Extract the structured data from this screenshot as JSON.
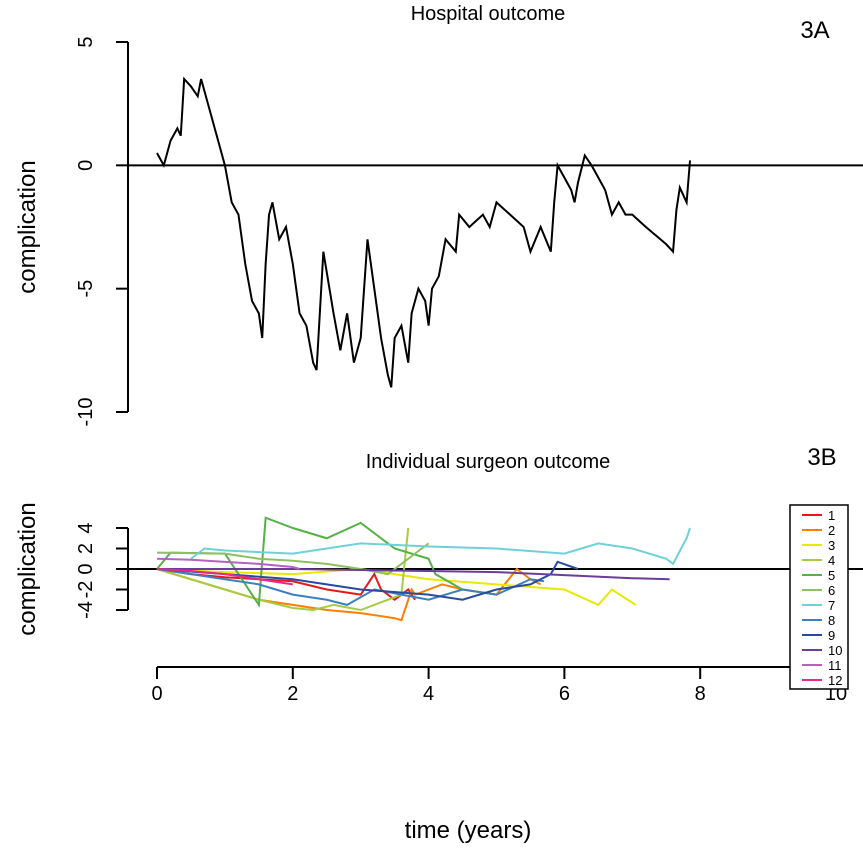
{
  "chart_data": [
    {
      "type": "line",
      "title": "Hospital outcome",
      "panel_label": "3A",
      "y_label": "complication",
      "xlim": [
        0,
        10
      ],
      "ylim": [
        -10,
        5
      ],
      "yticks": [
        5,
        0,
        -5,
        -10
      ],
      "hline": 0,
      "series": [
        {
          "name": "hospital",
          "color": "#000000",
          "x": [
            0,
            0.1,
            0.2,
            0.3,
            0.35,
            0.4,
            0.5,
            0.6,
            0.65,
            0.7,
            0.8,
            0.9,
            1.0,
            1.1,
            1.2,
            1.3,
            1.4,
            1.5,
            1.55,
            1.6,
            1.65,
            1.7,
            1.8,
            1.9,
            2.0,
            2.1,
            2.2,
            2.3,
            2.35,
            2.45,
            2.6,
            2.7,
            2.8,
            2.9,
            3.0,
            3.1,
            3.2,
            3.3,
            3.4,
            3.45,
            3.5,
            3.6,
            3.7,
            3.75,
            3.85,
            3.95,
            4.0,
            4.05,
            4.15,
            4.25,
            4.4,
            4.45,
            4.6,
            4.8,
            4.9,
            5.0,
            5.2,
            5.4,
            5.5,
            5.65,
            5.8,
            5.85,
            5.9,
            6.0,
            6.1,
            6.15,
            6.2,
            6.3,
            6.4,
            6.5,
            6.6,
            6.7,
            6.8,
            6.9,
            7.0,
            7.2,
            7.5,
            7.6,
            7.65,
            7.7,
            7.8,
            7.85
          ],
          "values": [
            0.5,
            0,
            1,
            1.5,
            1.2,
            3.5,
            3.2,
            2.8,
            3.5,
            3,
            2,
            1,
            0,
            -1.5,
            -2,
            -4,
            -5.5,
            -6,
            -7,
            -4,
            -2,
            -1.5,
            -3,
            -2.5,
            -4,
            -6,
            -6.5,
            -8,
            -8.3,
            -3.5,
            -6,
            -7.5,
            -6,
            -8,
            -7,
            -3,
            -5,
            -7,
            -8.5,
            -9,
            -7,
            -6.5,
            -8,
            -6,
            -5,
            -5.5,
            -6.5,
            -5,
            -4.5,
            -3,
            -3.5,
            -2,
            -2.5,
            -2,
            -2.5,
            -1.5,
            -2,
            -2.5,
            -3.5,
            -2.5,
            -3.5,
            -1.5,
            0,
            -0.5,
            -1,
            -1.5,
            -0.7,
            0.4,
            0,
            -0.5,
            -1,
            -2,
            -1.5,
            -2,
            -2,
            -2.5,
            -3.2,
            -3.5,
            -1.8,
            -0.9,
            -1.5,
            0.2
          ]
        }
      ]
    },
    {
      "type": "line",
      "title": "Individual surgeon outcome",
      "panel_label": "3B",
      "y_label": "complication",
      "x_label": "time (years)",
      "xlim": [
        0,
        10
      ],
      "ylim": [
        -4,
        4
      ],
      "yticks": [
        4,
        2,
        0,
        -2,
        -4
      ],
      "xticks": [
        0,
        2,
        4,
        6,
        8,
        10
      ],
      "hline": 0,
      "legend": "right",
      "series": [
        {
          "name": "1",
          "color": "#e41a1c",
          "x": [
            0,
            0.5,
            1,
            1.5,
            2,
            2.5,
            3,
            3.2,
            3.3,
            3.5,
            3.7,
            3.8
          ],
          "values": [
            0,
            -0.5,
            -0.8,
            -1,
            -1.2,
            -2,
            -2.5,
            -0.5,
            -2,
            -3,
            -2,
            -3
          ]
        },
        {
          "name": "2",
          "color": "#ff7f00",
          "x": [
            0,
            0.5,
            1,
            1.5,
            2,
            2.5,
            3,
            3.5,
            3.6,
            3.75,
            3.8,
            4.2,
            4.5,
            5,
            5.3,
            5.5,
            5.65
          ],
          "values": [
            0,
            -1,
            -2,
            -3,
            -3.5,
            -4,
            -4.3,
            -4.8,
            -5,
            -2,
            -2.5,
            -1.5,
            -2,
            -2.5,
            0,
            -1,
            -1.5
          ]
        },
        {
          "name": "3",
          "color": "#e8e800",
          "x": [
            0,
            1,
            2,
            3,
            3.5,
            4,
            5,
            6,
            6.5,
            6.7,
            7.05
          ],
          "values": [
            0,
            -0.3,
            -0.5,
            0,
            -0.5,
            -1,
            -1.5,
            -2,
            -3.5,
            -2,
            -3.5
          ]
        },
        {
          "name": "4",
          "color": "#a6cc44",
          "x": [
            0,
            0.5,
            1,
            1.5,
            2,
            2.3,
            2.6,
            3,
            3.6,
            3.7
          ],
          "values": [
            0,
            -1,
            -2,
            -3,
            -3.8,
            -4,
            -3.5,
            -4,
            -2.5,
            4
          ]
        },
        {
          "name": "5",
          "color": "#55b046",
          "x": [
            0,
            0.2,
            1,
            1.5,
            1.6,
            2,
            2.5,
            3,
            3.5,
            4,
            4.1,
            4.5,
            5
          ],
          "values": [
            0,
            1.6,
            1.5,
            -3.5,
            5,
            4,
            3,
            4.5,
            2,
            1,
            -0.5,
            -2,
            -2.5
          ]
        },
        {
          "name": "6",
          "color": "#8cc060",
          "x": [
            0,
            1,
            1.5,
            2,
            2.5,
            3,
            3.4,
            3.8,
            4
          ],
          "values": [
            1.6,
            1.5,
            1,
            0.8,
            0.5,
            0,
            -0.5,
            1.5,
            2.5
          ]
        },
        {
          "name": "7",
          "color": "#6fd0d8",
          "x": [
            0.5,
            0.7,
            1,
            2,
            3,
            4,
            5,
            6,
            6.5,
            7,
            7.5,
            7.6,
            7.8,
            7.85
          ],
          "values": [
            1,
            2,
            1.8,
            1.5,
            2.5,
            2.2,
            2,
            1.5,
            2.5,
            2,
            1,
            0.5,
            3,
            4
          ]
        },
        {
          "name": "8",
          "color": "#3f7fc0",
          "x": [
            0,
            0.5,
            1,
            1.5,
            2,
            2.5,
            2.8,
            3.2,
            3.6,
            4,
            4.5,
            5,
            5.5,
            5.7
          ],
          "values": [
            0,
            -0.5,
            -1,
            -1.5,
            -2.5,
            -3,
            -3.5,
            -2,
            -2.5,
            -3,
            -2,
            -2.5,
            -1,
            -1.2
          ]
        },
        {
          "name": "9",
          "color": "#2a4aa0",
          "x": [
            0,
            1,
            2,
            3,
            4,
            4.5,
            5,
            5.5,
            5.8,
            5.9,
            6.2
          ],
          "values": [
            0,
            -0.5,
            -1,
            -2,
            -2.5,
            -3,
            -2,
            -1.5,
            -0.5,
            0.7,
            0
          ]
        },
        {
          "name": "10",
          "color": "#6a3d9a",
          "x": [
            0,
            1,
            2,
            3,
            4,
            5,
            6,
            7,
            7.55
          ],
          "values": [
            0,
            0,
            0,
            -0.1,
            -0.2,
            -0.3,
            -0.6,
            -0.9,
            -1
          ]
        },
        {
          "name": "11",
          "color": "#b660c0",
          "x": [
            0,
            0.5,
            1,
            1.5,
            2,
            2.1
          ],
          "values": [
            1,
            0.9,
            0.7,
            0.5,
            0.2,
            0
          ]
        },
        {
          "name": "12",
          "color": "#e7298a",
          "x": [
            0,
            0.5,
            1,
            1.5,
            2
          ],
          "values": [
            0,
            -0.2,
            -0.5,
            -1,
            -1.5
          ]
        }
      ]
    }
  ]
}
